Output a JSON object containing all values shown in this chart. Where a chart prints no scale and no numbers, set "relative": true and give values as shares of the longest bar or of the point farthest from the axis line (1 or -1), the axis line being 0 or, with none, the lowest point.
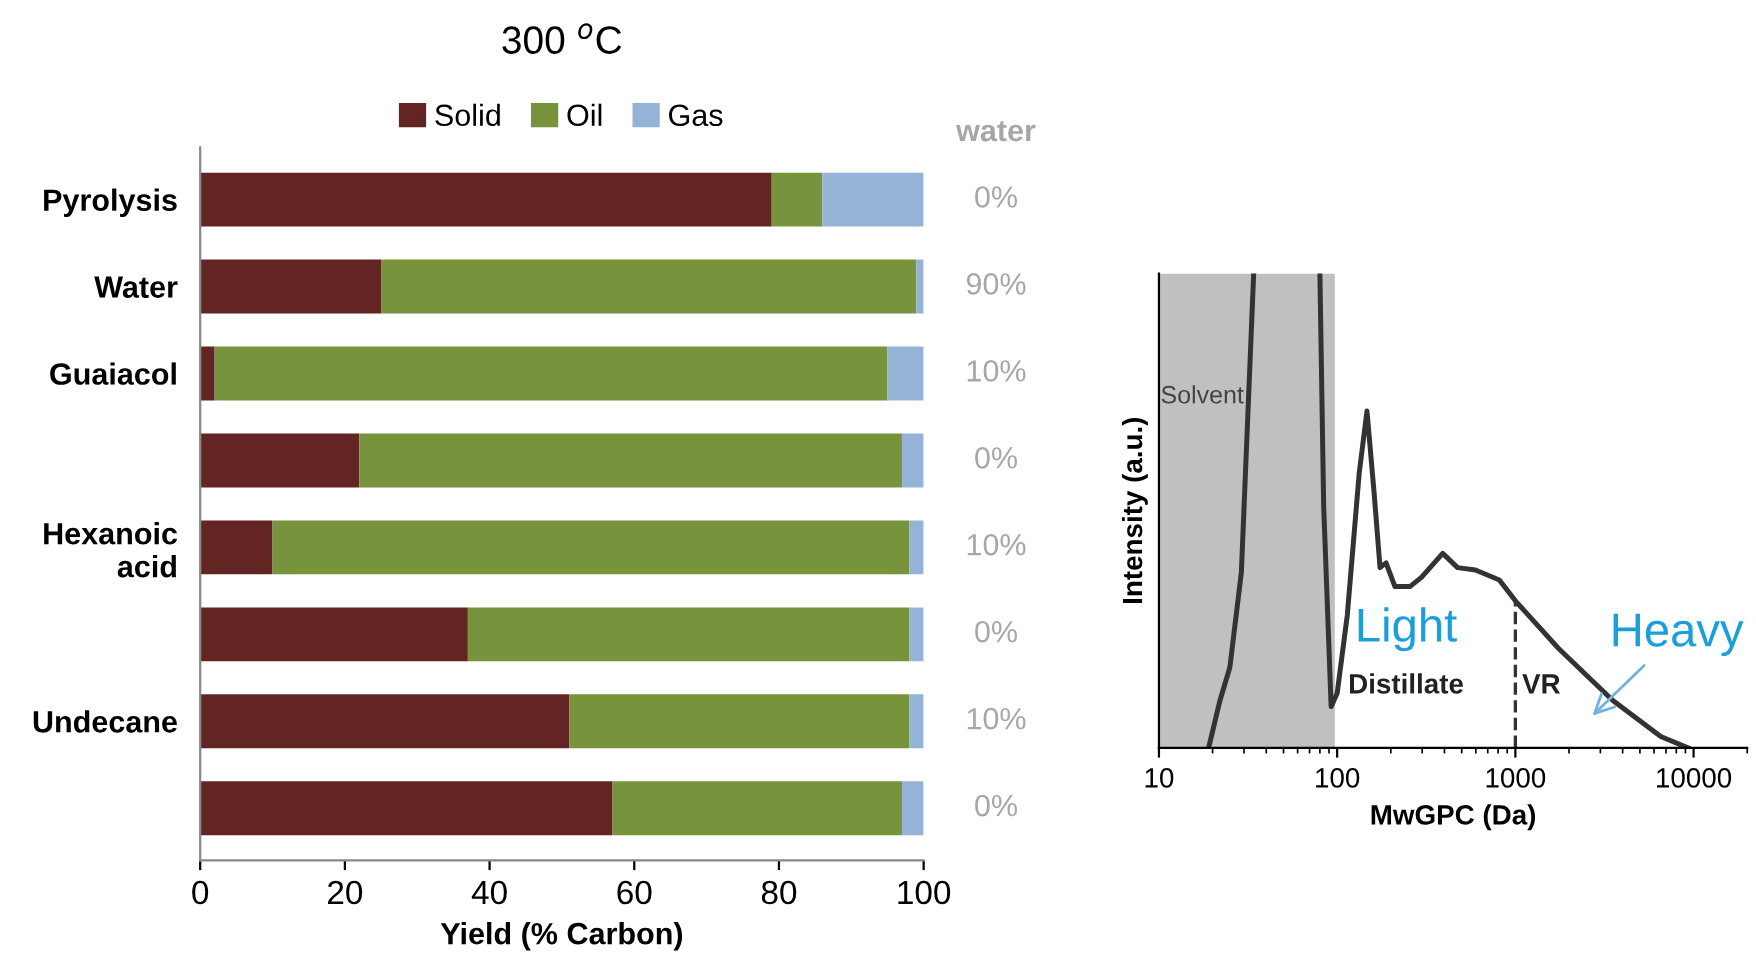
{
  "chart_data": [
    {
      "type": "bar",
      "orientation": "horizontal",
      "stacked": true,
      "title": "300 $^{o}$C",
      "xlabel": "Yield (% Carbon)",
      "categories": [
        "Pyrolysis",
        "Water",
        "Guaiacol",
        null,
        "Hexanoic acid",
        null,
        "Undecane",
        null
      ],
      "series": [
        {
          "name": "Solid",
          "color": "#632523",
          "values": [
            79,
            25,
            2,
            22,
            10,
            37,
            51,
            57
          ]
        },
        {
          "name": "Oil",
          "color": "#77933c",
          "values": [
            7,
            74,
            93,
            75,
            88,
            61,
            47,
            40
          ]
        },
        {
          "name": "Gas",
          "color": "#95b3d7",
          "values": [
            14,
            1,
            5,
            3,
            2,
            2,
            2,
            3
          ]
        }
      ],
      "xlim": [
        0,
        100
      ],
      "xticks": [
        0,
        20,
        40,
        60,
        80,
        100
      ],
      "legend": "top",
      "grid": false,
      "annotations": [
        "water",
        "0%",
        "90%",
        "10%",
        "0%",
        "10%",
        "0%",
        "10%",
        "0%"
      ]
    },
    {
      "type": "line",
      "relative": true,
      "log": "x",
      "xlabel": "MwGPC (Da)",
      "ylabel": "Intensity (a.u.)",
      "xlim": [
        10,
        20000
      ],
      "xticks": [
        10,
        100,
        1000,
        10000
      ],
      "tick_labels": "x",
      "grid": false,
      "legend": false,
      "series": [
        {
          "color": "#333333",
          "x": [
            19,
            22,
            25,
            29,
            34,
            null,
            80,
            84,
            92.5,
            100,
            114,
            133,
            147,
            161,
            174,
            188,
            211,
            256,
            298,
            391,
            474,
            597,
            813,
            1000,
            1742,
            3524,
            6546,
            9310
          ],
          "values": [
            0,
            0.1,
            0.17,
            0.37,
            1,
            null,
            1,
            0.51,
            0.087,
            0.115,
            0.28,
            0.58,
            0.71,
            0.54,
            0.38,
            0.39,
            0.34,
            0.34,
            0.36,
            0.41,
            0.38,
            0.375,
            0.354,
            0.31,
            0.21,
            0.1,
            0.024,
            0
          ]
        }
      ],
      "bands": [
        {
          "axis": "x",
          "from": 10,
          "to": 97,
          "label": "Solvent",
          "color": "#c0c0c0"
        }
      ],
      "ref_lines": [
        {
          "axis": "x",
          "value": 1000,
          "line_style": "dashed",
          "color": "#333333"
        }
      ],
      "annotations": [
        "Distillate",
        "VR",
        "Light",
        "Heavy"
      ]
    }
  ]
}
